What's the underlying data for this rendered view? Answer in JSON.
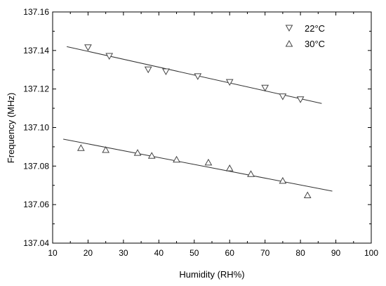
{
  "chart_data": {
    "type": "scatter",
    "title": "",
    "xlabel": "Humidity (RH%)",
    "ylabel": "Frequency (MHz)",
    "xlim": [
      10,
      100
    ],
    "ylim": [
      137.04,
      137.16
    ],
    "xticks": [
      "10",
      "20",
      "30",
      "40",
      "50",
      "60",
      "70",
      "80",
      "90",
      "100"
    ],
    "yticks": [
      "137.04",
      "137.06",
      "137.08",
      "137.10",
      "137.12",
      "137.14",
      "137.16"
    ],
    "grid": false,
    "legend_position": "top-right",
    "series": [
      {
        "name": "22°C",
        "marker": "triangle-down",
        "points": [
          [
            20,
            137.1415
          ],
          [
            26,
            137.137
          ],
          [
            37,
            137.13
          ],
          [
            42,
            137.129
          ],
          [
            51,
            137.1265
          ],
          [
            60,
            137.1235
          ],
          [
            70,
            137.1205
          ],
          [
            75,
            137.116
          ],
          [
            80,
            137.1145
          ]
        ],
        "fit": [
          [
            14,
            137.142
          ],
          [
            86,
            137.1125
          ]
        ]
      },
      {
        "name": "30°C",
        "marker": "triangle-up",
        "points": [
          [
            18,
            137.0895
          ],
          [
            25,
            137.0885
          ],
          [
            34,
            137.087
          ],
          [
            38,
            137.0855
          ],
          [
            45,
            137.0835
          ],
          [
            54,
            137.082
          ],
          [
            60,
            137.079
          ],
          [
            66,
            137.076
          ],
          [
            75,
            137.0725
          ],
          [
            82,
            137.065
          ]
        ],
        "fit": [
          [
            13,
            137.094
          ],
          [
            89,
            137.067
          ]
        ]
      }
    ]
  }
}
